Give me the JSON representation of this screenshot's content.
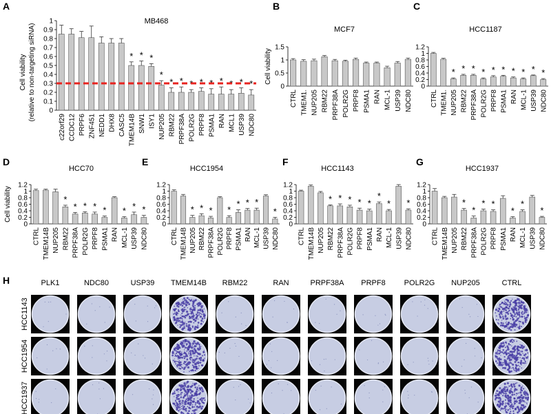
{
  "chart_data": [
    {
      "type": "bar",
      "panel": "A",
      "title": "MB468",
      "ylabel": [
        "Cell viability",
        "(relative to non-targeting siRNA)"
      ],
      "categories": [
        "c22orf29",
        "CCDC12",
        "PRPF6",
        "ZNF451",
        "NEDD1",
        "DHX8",
        "CASC5",
        "TMEM14B",
        "SNW1",
        "ISY1",
        "NUP205",
        "RBM22",
        "PRPF38A",
        "POLR2G",
        "PRPF8",
        "PSMA1",
        "RAN",
        "MCL1",
        "USP39",
        "NDC80"
      ],
      "values": [
        0.85,
        0.85,
        0.81,
        0.81,
        0.75,
        0.75,
        0.75,
        0.5,
        0.5,
        0.49,
        0.28,
        0.2,
        0.2,
        0.2,
        0.21,
        0.18,
        0.18,
        0.18,
        0.19,
        0.17
      ],
      "errors": [
        0.1,
        0.06,
        0.07,
        0.13,
        0.07,
        0.05,
        0.05,
        0.04,
        0.05,
        0.03,
        0.05,
        0.05,
        0.06,
        0.03,
        0.04,
        0.06,
        0.08,
        0.05,
        0.06,
        0.06
      ],
      "significance": [
        null,
        null,
        null,
        null,
        null,
        null,
        null,
        "*",
        "*",
        "*",
        "*",
        "*",
        "*",
        "*",
        "*",
        "*",
        "*",
        "*",
        "*",
        "*"
      ],
      "threshold": 0.3,
      "threshold_color": "#e8231f",
      "color": "#c8c8c8",
      "ylim": [
        0,
        1
      ],
      "yticks": [
        0,
        0.1,
        0.2,
        0.3,
        0.4,
        0.5,
        0.6,
        0.7,
        0.8,
        0.9,
        1
      ]
    },
    {
      "type": "bar",
      "panel": "B",
      "title": "MCF7",
      "ylabel": "Cell viability",
      "categories": [
        "CTRL",
        "TMEM1.",
        "NUP205",
        "RBM22",
        "PRPF38A",
        "POLR2G",
        "PRPF8",
        "PSMA1",
        "RAN",
        "MCL-1",
        "USP39",
        "NDC80"
      ],
      "values": [
        1.0,
        0.95,
        0.97,
        1.12,
        0.97,
        0.95,
        1.02,
        0.88,
        0.88,
        0.7,
        0.88,
        1.02
      ],
      "errors": [
        0.05,
        0.06,
        0.06,
        0.05,
        0.05,
        0.04,
        0.05,
        0.04,
        0.04,
        0.06,
        0.06,
        0.05
      ],
      "color": "#c8c8c8",
      "ylim": [
        0,
        1.5
      ],
      "yticks": [
        0,
        0.5,
        1,
        1.5
      ]
    },
    {
      "type": "bar",
      "panel": "C",
      "title": "HCC1187",
      "categories": [
        "CTRL",
        "TMEM1.",
        "NUP205",
        "RBM22",
        "PRPF38A",
        "POLR2G",
        "PRPF8",
        "PSMA1",
        "RAN",
        "MCL-1",
        "USP39",
        "NDC80"
      ],
      "values": [
        1.0,
        0.82,
        0.22,
        0.33,
        0.33,
        0.22,
        0.28,
        0.3,
        0.25,
        0.22,
        0.32,
        0.2
      ],
      "errors": [
        0.03,
        0.03,
        0.03,
        0.03,
        0.03,
        0.03,
        0.04,
        0.03,
        0.03,
        0.03,
        0.02,
        0.03
      ],
      "significance": [
        null,
        null,
        "*",
        "*",
        "*",
        "*",
        "*",
        "*",
        "*",
        "*",
        "*",
        "*"
      ],
      "color": "#c8c8c8",
      "ylim": [
        0,
        1.2
      ],
      "yticks": [
        0,
        0.2,
        0.4,
        0.6,
        0.8,
        1,
        1.2
      ]
    },
    {
      "type": "bar",
      "panel": "D",
      "title": "HCC70",
      "ylabel": "Cell viability",
      "categories": [
        "CTRL",
        "TMEM14B",
        "NUP205",
        "RBM22",
        "PRPF38A",
        "POLR2G",
        "PRPF8",
        "PSMA1",
        "RAN",
        "MCL-1",
        "USP39",
        "NDC80"
      ],
      "values": [
        1.02,
        1.03,
        0.98,
        0.52,
        0.3,
        0.33,
        0.3,
        0.2,
        0.8,
        0.18,
        0.28,
        0.2
      ],
      "errors": [
        0.04,
        0.03,
        0.08,
        0.05,
        0.05,
        0.04,
        0.06,
        0.04,
        0.03,
        0.04,
        0.08,
        0.06
      ],
      "significance": [
        null,
        null,
        null,
        "*",
        "*",
        "*",
        "*",
        "*",
        null,
        "*",
        "*",
        "*"
      ],
      "color": "#c8c8c8",
      "ylim": [
        0,
        1.2
      ],
      "yticks": [
        0,
        0.2,
        0.4,
        0.6,
        0.8,
        1,
        1.2
      ]
    },
    {
      "type": "bar",
      "panel": "E",
      "title": "HCC1954",
      "categories": [
        "CTRL",
        "TMEM14B",
        "NUP205",
        "RBM22",
        "PRPF38A",
        "POLR2G",
        "PRPF8",
        "PSMA1",
        "RAN",
        "MCL-1",
        "USP39",
        "NDC80"
      ],
      "values": [
        1.0,
        0.85,
        0.2,
        0.25,
        0.18,
        0.8,
        0.2,
        0.35,
        0.42,
        0.42,
        0.85,
        0.15
      ],
      "errors": [
        0.04,
        0.05,
        0.06,
        0.06,
        0.05,
        0.03,
        0.05,
        0.08,
        0.05,
        0.06,
        0.04,
        0.05
      ],
      "significance": [
        null,
        null,
        "*",
        "*",
        "*",
        null,
        "*",
        "*",
        "*",
        "*",
        null,
        "*"
      ],
      "color": "#c8c8c8",
      "ylim": [
        0,
        1.2
      ],
      "yticks": [
        0,
        0.2,
        0.4,
        0.6,
        0.8,
        1,
        1.2
      ]
    },
    {
      "type": "bar",
      "panel": "F",
      "title": "HCC1143",
      "categories": [
        "CTRL",
        "TMEM14B",
        "NUP205",
        "RBM22",
        "PRPF38A",
        "POLR2G",
        "PRPF8",
        "PSMA1",
        "RAN",
        "MCL-1",
        "USP39",
        "NDC80"
      ],
      "values": [
        1.0,
        1.15,
        0.95,
        0.55,
        0.55,
        0.52,
        0.42,
        0.4,
        0.62,
        0.4,
        1.15,
        0.42
      ],
      "errors": [
        0.03,
        0.04,
        0.04,
        0.03,
        0.06,
        0.05,
        0.06,
        0.05,
        0.05,
        0.04,
        0.05,
        0.04
      ],
      "significance": [
        null,
        null,
        null,
        "*",
        "*",
        "*",
        "*",
        "*",
        "*",
        "*",
        null,
        "*"
      ],
      "color": "#c8c8c8",
      "ylim": [
        0,
        1.2
      ],
      "yticks": [
        0,
        0.2,
        0.4,
        0.6,
        0.8,
        1,
        1.2
      ]
    },
    {
      "type": "bar",
      "panel": "G",
      "title": "HCC1937",
      "categories": [
        "CTRL",
        "TMEM14B",
        "NUP205",
        "RBM22",
        "PRPF38A",
        "POLR2G",
        "PRPF8",
        "PSMA1",
        "RAN",
        "MCL-1",
        "USP39",
        "NDC80"
      ],
      "values": [
        1.0,
        0.8,
        0.82,
        0.42,
        0.18,
        0.4,
        0.38,
        0.78,
        0.18,
        0.38,
        0.82,
        0.2
      ],
      "errors": [
        0.08,
        0.04,
        0.08,
        0.05,
        0.06,
        0.05,
        0.05,
        0.08,
        0.04,
        0.05,
        0.05,
        0.03
      ],
      "significance": [
        null,
        null,
        null,
        "*",
        "*",
        "*",
        "*",
        null,
        "*",
        "*",
        null,
        "*"
      ],
      "color": "#c8c8c8",
      "ylim": [
        0,
        1.2
      ],
      "yticks": [
        0,
        0.2,
        0.4,
        0.6,
        0.8,
        1,
        1.2
      ]
    }
  ],
  "panel_h": {
    "panel": "H",
    "columns": [
      "PLK1",
      "NDC80",
      "USP39",
      "TMEM14B",
      "RBM22",
      "RAN",
      "PRPF38A",
      "PRPF8",
      "POLR2G",
      "NUP205",
      "CTRL"
    ],
    "rows": [
      "HCC1143",
      "HCC1954",
      "HCC1937"
    ]
  }
}
